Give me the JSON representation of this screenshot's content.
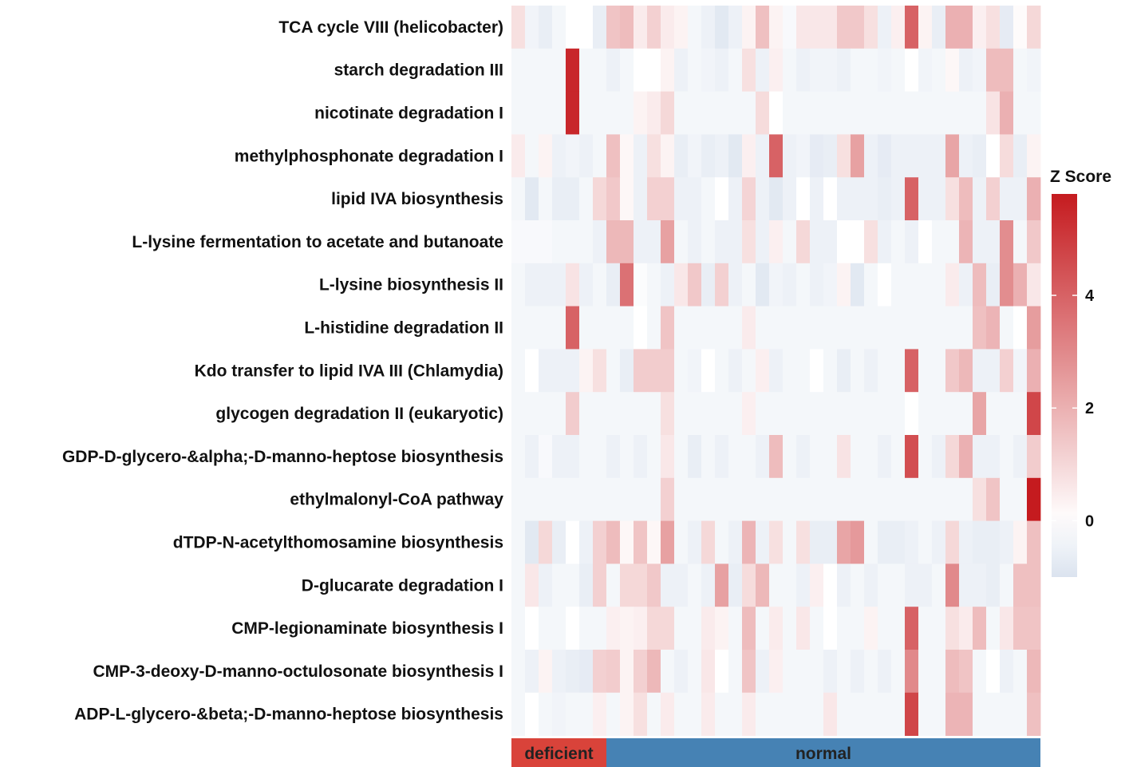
{
  "chart_data": {
    "type": "heatmap",
    "rows": [
      "TCA cycle VIII (helicobacter)",
      "starch degradation III",
      "nicotinate degradation I",
      "methylphosphonate degradation I",
      "lipid IVA biosynthesis",
      "L-lysine fermentation to acetate and butanoate",
      "L-lysine biosynthesis II",
      "L-histidine degradation II",
      "Kdo transfer to lipid IVA III (Chlamydia)",
      "glycogen degradation II (eukaryotic)",
      "GDP-D-glycero-&alpha;-D-manno-heptose biosynthesis",
      "ethylmalonyl-CoA pathway",
      "dTDP-N-acetylthomosamine biosynthesis",
      "D-glucarate degradation I",
      "CMP-legionaminate biosynthesis I",
      "CMP-3-deoxy-D-manno-octulosonate biosynthesis I",
      "ADP-L-glycero-&beta;-D-manno-heptose biosynthesis"
    ],
    "column_groups": [
      {
        "label": "deficient",
        "count": 7,
        "color": "#d9433a"
      },
      {
        "label": "normal",
        "count": 32,
        "color": "#4682b4"
      }
    ],
    "values": [
      [
        0.8,
        -0.4,
        -0.6,
        -0.3,
        0,
        0,
        -0.6,
        1.5,
        1.7,
        0.5,
        1.2,
        0.5,
        0.3,
        -0.3,
        -0.5,
        -0.8,
        -0.5,
        0.3,
        1.6,
        0.3,
        -0.2,
        0.6,
        0.6,
        0.6,
        1.4,
        1.4,
        0.8,
        -0.5,
        0.4,
        4.0,
        0.3,
        -0.6,
        2.0,
        2.0,
        0.4,
        0.8,
        -0.7,
        0.1,
        1.0
      ],
      [
        -0.3,
        -0.3,
        -0.3,
        -0.3,
        5.5,
        -0.3,
        -0.3,
        -0.5,
        -0.3,
        0,
        0,
        0.3,
        -0.5,
        -0.3,
        -0.4,
        -0.5,
        -0.3,
        0.8,
        -0.5,
        0.4,
        -0.3,
        -0.5,
        -0.4,
        -0.4,
        -0.5,
        -0.3,
        -0.3,
        -0.4,
        -0.3,
        0,
        -0.4,
        -0.3,
        0.2,
        -0.5,
        -0.4,
        1.7,
        1.7,
        -0.3,
        -0.4
      ],
      [
        -0.3,
        -0.3,
        -0.3,
        -0.3,
        5.5,
        -0.3,
        -0.3,
        -0.3,
        -0.3,
        0.3,
        0.5,
        1.0,
        -0.3,
        -0.3,
        -0.3,
        -0.3,
        -0.3,
        -0.3,
        0.9,
        0,
        -0.3,
        -0.3,
        -0.3,
        -0.3,
        -0.3,
        -0.3,
        -0.3,
        -0.3,
        -0.3,
        -0.3,
        -0.3,
        -0.3,
        -0.3,
        -0.3,
        -0.3,
        0.7,
        2.0,
        -0.3,
        -0.3
      ],
      [
        0.5,
        -0.3,
        0.3,
        -0.5,
        -0.4,
        -0.5,
        -0.3,
        1.6,
        0.2,
        -0.5,
        0.8,
        0.3,
        -0.6,
        -0.4,
        -0.6,
        -0.5,
        -0.8,
        0.4,
        -0.5,
        4.0,
        -0.5,
        -0.4,
        -0.7,
        -0.6,
        0.8,
        2.4,
        -0.5,
        -0.7,
        -0.5,
        -0.5,
        -0.5,
        -0.5,
        2.3,
        -0.5,
        -0.6,
        0,
        0.9,
        -0.6,
        0.3
      ],
      [
        -0.3,
        -0.8,
        -0.3,
        -0.6,
        -0.6,
        -0.3,
        1.0,
        1.4,
        0.2,
        -0.5,
        1.2,
        1.2,
        -0.5,
        -0.5,
        -0.3,
        0,
        -0.5,
        1.1,
        -0.5,
        -0.8,
        -0.5,
        0,
        -0.5,
        0,
        -0.5,
        -0.5,
        -0.5,
        -0.6,
        -0.5,
        4.0,
        -0.5,
        -0.5,
        0.8,
        1.7,
        -0.5,
        1.2,
        -0.5,
        -0.5,
        2.0
      ],
      [
        -0.2,
        -0.2,
        -0.2,
        -0.3,
        -0.3,
        -0.3,
        -0.5,
        1.8,
        1.8,
        -0.5,
        -0.5,
        2.4,
        -0.3,
        -0.5,
        -0.3,
        -0.5,
        -0.5,
        0.8,
        -0.5,
        0.4,
        -0.3,
        1.0,
        -0.5,
        -0.5,
        0,
        0,
        0.8,
        -0.5,
        -0.3,
        -0.5,
        0,
        -0.3,
        -0.3,
        1.9,
        -0.5,
        -0.5,
        2.9,
        -0.3,
        1.4
      ],
      [
        -0.3,
        -0.5,
        -0.5,
        -0.5,
        0.7,
        -0.5,
        -0.3,
        -0.6,
        3.6,
        -0.1,
        -0.3,
        -0.5,
        0.6,
        1.4,
        -0.6,
        1.2,
        -0.5,
        -0.3,
        -0.8,
        -0.4,
        -0.5,
        -0.3,
        -0.5,
        -0.4,
        0.3,
        -0.8,
        -0.3,
        0,
        -0.3,
        -0.3,
        -0.3,
        -0.3,
        0.5,
        -0.5,
        1.7,
        -0.6,
        2.9,
        2.0,
        0.6
      ],
      [
        -0.3,
        -0.3,
        -0.3,
        -0.3,
        4.0,
        -0.3,
        -0.3,
        -0.3,
        -0.3,
        0,
        -0.3,
        1.5,
        -0.3,
        -0.3,
        -0.3,
        -0.3,
        -0.3,
        0.5,
        -0.3,
        -0.3,
        -0.3,
        -0.3,
        -0.3,
        -0.3,
        -0.3,
        -0.3,
        -0.3,
        -0.3,
        -0.3,
        -0.3,
        -0.3,
        -0.3,
        -0.3,
        -0.3,
        1.6,
        1.9,
        -0.3,
        0,
        2.5
      ],
      [
        -0.3,
        0,
        -0.5,
        -0.5,
        -0.5,
        0.3,
        0.8,
        -0.3,
        -0.6,
        1.3,
        1.3,
        1.3,
        -0.3,
        -0.4,
        0,
        -0.3,
        -0.5,
        -0.3,
        0.4,
        -0.5,
        -0.3,
        -0.3,
        0,
        -0.3,
        -0.6,
        -0.3,
        -0.5,
        -0.3,
        -0.3,
        4.0,
        -0.3,
        -0.3,
        1.4,
        1.8,
        -0.5,
        -0.5,
        1.2,
        -0.4,
        2.0
      ],
      [
        -0.3,
        -0.3,
        -0.3,
        -0.3,
        1.3,
        -0.3,
        -0.3,
        -0.3,
        -0.3,
        -0.3,
        -0.3,
        0.8,
        -0.3,
        -0.3,
        -0.3,
        -0.3,
        -0.3,
        0.4,
        -0.3,
        -0.3,
        -0.3,
        -0.3,
        -0.3,
        -0.3,
        -0.3,
        -0.3,
        -0.3,
        -0.3,
        -0.3,
        0,
        -0.3,
        -0.3,
        -0.3,
        -0.3,
        2.3,
        -0.3,
        -0.3,
        -0.3,
        4.7
      ],
      [
        -0.3,
        -0.5,
        -0.2,
        -0.5,
        -0.5,
        -0.3,
        -0.3,
        -0.5,
        -0.3,
        -0.5,
        -0.3,
        0.6,
        -0.3,
        -0.6,
        -0.3,
        -0.5,
        -0.3,
        -0.3,
        -0.5,
        1.7,
        -0.3,
        -0.5,
        -0.3,
        -0.3,
        0.7,
        -0.3,
        -0.3,
        -0.5,
        -0.3,
        4.5,
        -0.3,
        -0.5,
        1.0,
        2.0,
        -0.5,
        -0.5,
        -0.3,
        -0.5,
        1.3
      ],
      [
        -0.3,
        -0.3,
        -0.3,
        -0.3,
        -0.3,
        -0.3,
        -0.3,
        -0.3,
        -0.3,
        -0.3,
        -0.3,
        1.2,
        -0.3,
        -0.3,
        -0.3,
        -0.3,
        -0.3,
        -0.3,
        -0.3,
        -0.3,
        -0.3,
        -0.3,
        -0.3,
        -0.3,
        -0.3,
        -0.3,
        -0.3,
        -0.3,
        -0.3,
        -0.3,
        -0.3,
        -0.3,
        -0.3,
        -0.3,
        0.8,
        1.5,
        -0.3,
        -0.3,
        5.8
      ],
      [
        -0.3,
        -0.8,
        1.0,
        -0.6,
        0,
        -0.5,
        1.2,
        1.7,
        0.2,
        1.5,
        0.2,
        2.4,
        -0.3,
        -0.5,
        1.0,
        -0.3,
        -0.5,
        1.9,
        -0.5,
        0.8,
        -0.3,
        0.8,
        -0.6,
        -0.6,
        2.3,
        2.6,
        -0.3,
        -0.6,
        -0.6,
        -0.5,
        -0.3,
        -0.5,
        1.0,
        -0.5,
        -0.6,
        -0.6,
        -0.5,
        0.3,
        1.6
      ],
      [
        -0.3,
        0.6,
        -0.5,
        -0.3,
        -0.3,
        -0.6,
        1.2,
        -0.3,
        1.0,
        1.0,
        1.4,
        -0.5,
        -0.5,
        -0.3,
        -0.5,
        2.4,
        -0.6,
        0.9,
        1.8,
        -0.3,
        -0.3,
        -0.5,
        0.4,
        0,
        -0.5,
        -0.3,
        -0.5,
        -0.3,
        -0.3,
        -0.5,
        -0.5,
        -0.3,
        3.0,
        -0.5,
        -0.5,
        -0.6,
        -0.3,
        1.6,
        1.6
      ],
      [
        -0.3,
        0,
        -0.3,
        -0.3,
        0,
        -0.3,
        -0.3,
        0.4,
        0.3,
        0.4,
        1.0,
        1.0,
        -0.3,
        -0.3,
        0.5,
        0.3,
        -0.3,
        1.7,
        -0.3,
        0.5,
        -0.3,
        0.6,
        -0.3,
        0,
        -0.3,
        -0.3,
        0.3,
        -0.3,
        -0.3,
        4.0,
        -0.3,
        -0.3,
        0.8,
        0.5,
        1.7,
        -0.3,
        0.6,
        1.5,
        1.5
      ],
      [
        -0.3,
        -0.5,
        0.3,
        -0.5,
        -0.6,
        -0.7,
        1.2,
        1.3,
        0.3,
        1.2,
        1.8,
        -0.3,
        -0.5,
        -0.3,
        0.6,
        0,
        -0.3,
        1.5,
        -0.5,
        0.4,
        -0.3,
        -0.3,
        -0.3,
        -0.5,
        -0.3,
        -0.5,
        -0.3,
        -0.5,
        -0.3,
        3.0,
        -0.3,
        -0.3,
        1.7,
        1.5,
        -0.3,
        0,
        -0.5,
        -0.3,
        1.8
      ],
      [
        -0.3,
        0,
        -0.3,
        -0.4,
        -0.3,
        -0.3,
        0.4,
        -0.3,
        0.3,
        0.8,
        -0.3,
        0.5,
        -0.3,
        -0.3,
        0.5,
        -0.3,
        -0.3,
        0.5,
        -0.3,
        -0.3,
        -0.3,
        -0.3,
        -0.3,
        0.6,
        -0.3,
        -0.3,
        -0.3,
        -0.3,
        -0.3,
        4.7,
        -0.3,
        -0.3,
        1.9,
        1.9,
        -0.3,
        -0.3,
        -0.3,
        -0.3,
        1.6
      ]
    ],
    "color_scale": {
      "min": -1.0,
      "mid": 0,
      "max": 5.8,
      "low_color": "#dbe3ef",
      "mid_color": "#ffffff",
      "high_color": "#c51b1f"
    },
    "legend": {
      "title": "Z Score",
      "ticks": [
        0,
        2,
        4
      ],
      "placement": "right"
    }
  }
}
